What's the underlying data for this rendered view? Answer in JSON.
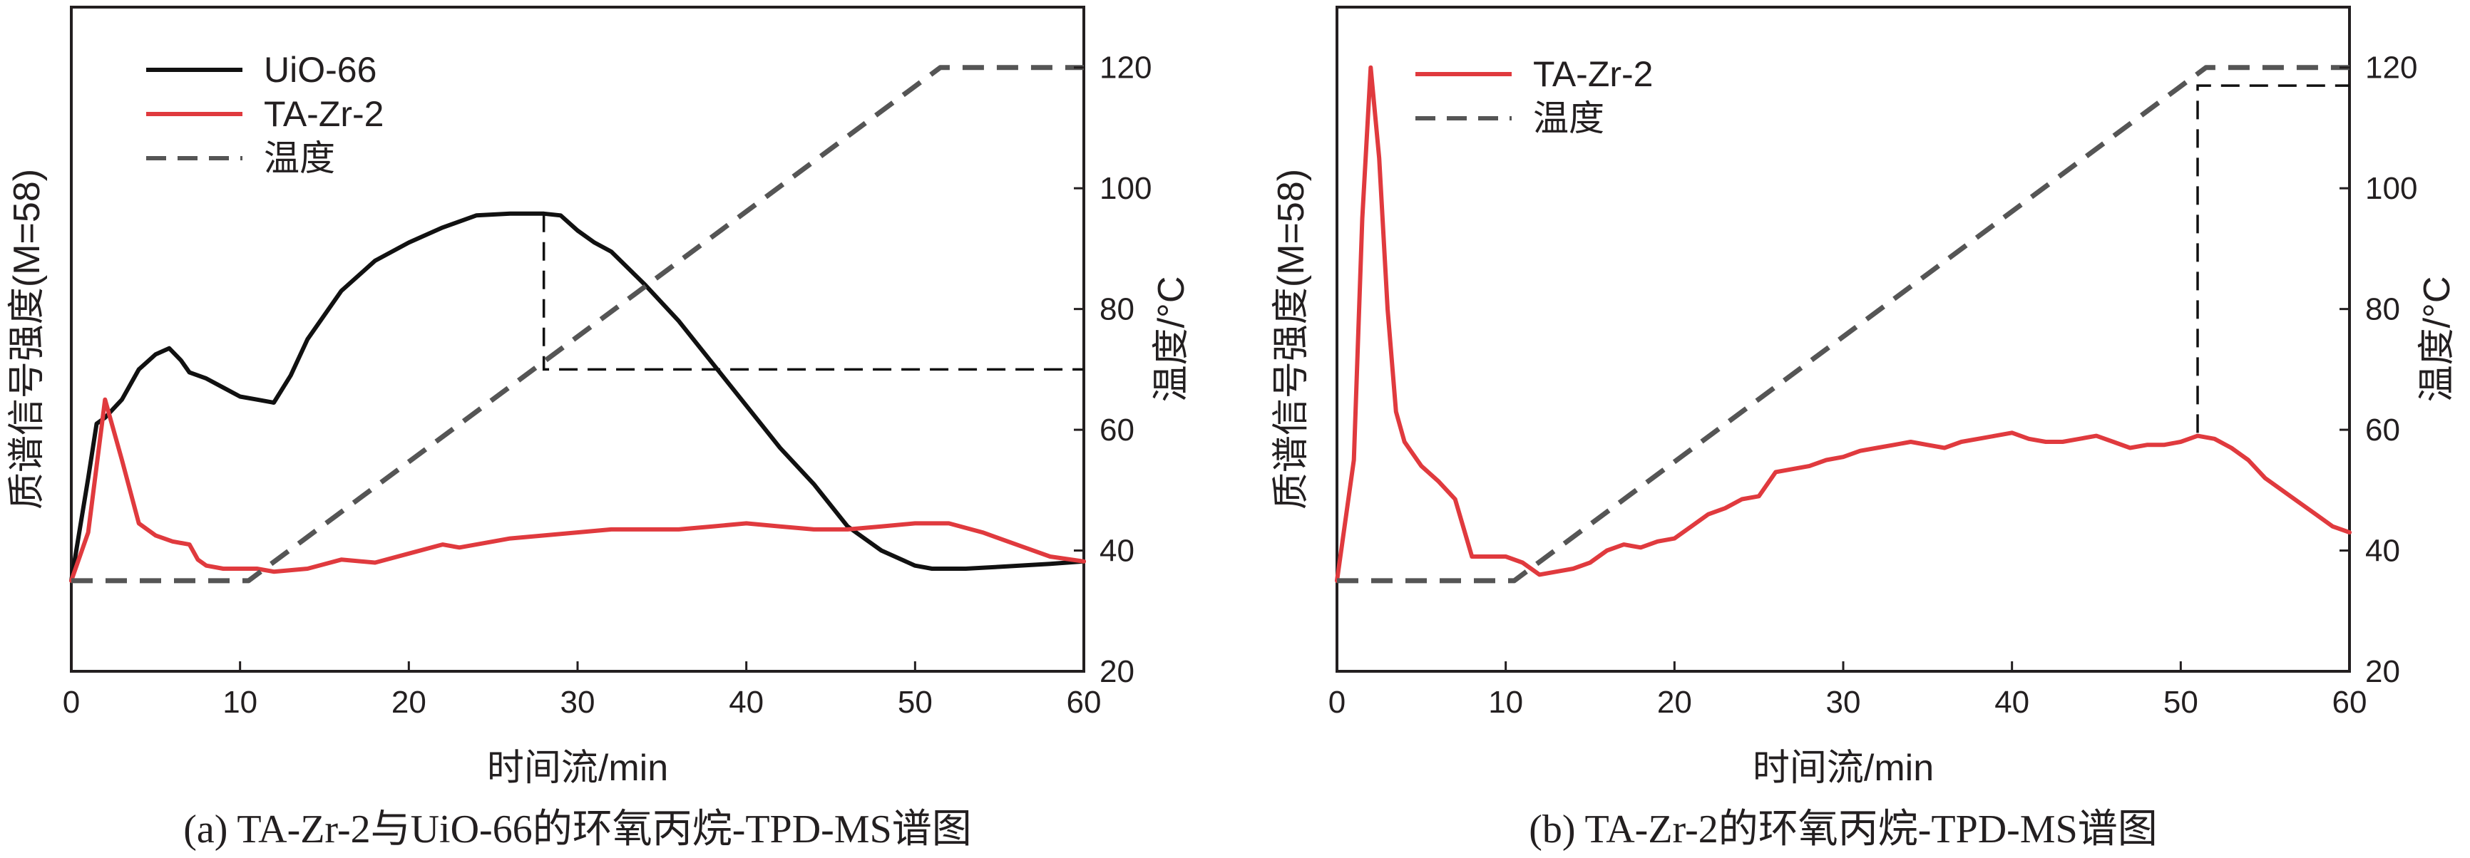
{
  "chart_data": [
    {
      "type": "line",
      "caption": "(a) TA-Zr-2与UiO-66的环氧丙烷-TPD-MS谱图",
      "xlabel": "时间流/min",
      "ylabel_left": "质谱信号强度(M=58)",
      "ylabel_right": "温度/°C",
      "xlim": [
        0,
        60
      ],
      "xticks": [
        "0",
        "10",
        "20",
        "30",
        "40",
        "50",
        "60"
      ],
      "y2lim": [
        20,
        130
      ],
      "y2ticks": [
        "20",
        "40",
        "60",
        "80",
        "100",
        "120"
      ],
      "legend_position": "top-left",
      "series": [
        {
          "name": "UiO-66",
          "color": "#111111",
          "style": "solid",
          "axis": "left",
          "x": [
            0,
            1,
            1.5,
            2,
            3,
            4,
            5,
            5.8,
            6.5,
            7,
            8,
            9,
            10,
            11,
            12,
            13,
            14,
            16,
            18,
            20,
            22,
            24,
            26,
            28,
            29,
            30,
            31,
            32,
            34,
            36,
            38,
            40,
            42,
            44,
            46,
            48,
            50,
            51,
            53,
            55,
            58,
            60
          ],
          "y": [
            35,
            52,
            61,
            62,
            65,
            70,
            72.5,
            73.5,
            71.5,
            69.5,
            68.5,
            67,
            65.5,
            65,
            64.5,
            69,
            75,
            83,
            88,
            91,
            93.5,
            95.5,
            95.8,
            95.8,
            95.5,
            93,
            91,
            89.5,
            84,
            78,
            71,
            64,
            57,
            51,
            44,
            40,
            37.5,
            37,
            37,
            37.3,
            37.8,
            38.2
          ]
        },
        {
          "name": "TA-Zr-2",
          "color": "#e03a3e",
          "style": "solid",
          "axis": "left",
          "x": [
            0,
            1,
            2,
            3,
            4,
            5,
            6,
            7,
            7.5,
            8,
            9,
            10,
            11,
            12,
            14,
            16,
            18,
            20,
            22,
            23,
            24,
            26,
            28,
            30,
            32,
            34,
            36,
            38,
            40,
            42,
            44,
            46,
            48,
            50,
            52,
            54,
            56,
            58,
            60
          ],
          "y": [
            35,
            43,
            65,
            55,
            44.5,
            42.5,
            41.5,
            41,
            38.5,
            37.5,
            37,
            37,
            37,
            36.5,
            37,
            38.5,
            38,
            39.5,
            41,
            40.5,
            41,
            42,
            42.5,
            43,
            43.5,
            43.5,
            43.5,
            44,
            44.5,
            44,
            43.5,
            43.5,
            44,
            44.5,
            44.5,
            43,
            41,
            39,
            38.2
          ]
        },
        {
          "name": "温度",
          "color": "#555555",
          "style": "dashed",
          "axis": "right",
          "x": [
            0,
            10.5,
            51.5,
            60
          ],
          "y": [
            35,
            35,
            120,
            120
          ]
        }
      ],
      "annotations": [
        {
          "type": "dashed-guide",
          "x": 28,
          "y_from": 95.8,
          "y_to": 70,
          "x_end": 60,
          "color": "#111111"
        }
      ]
    },
    {
      "type": "line",
      "caption": "(b) TA-Zr-2的环氧丙烷-TPD-MS谱图",
      "xlabel": "时间流/min",
      "ylabel_left": "质谱信号强度(M=58)",
      "ylabel_right": "温度/°C",
      "xlim": [
        0,
        60
      ],
      "xticks": [
        "0",
        "10",
        "20",
        "30",
        "40",
        "50",
        "60"
      ],
      "y2lim": [
        20,
        130
      ],
      "y2ticks": [
        "20",
        "40",
        "60",
        "80",
        "100",
        "120"
      ],
      "legend_position": "top-left",
      "series": [
        {
          "name": "TA-Zr-2",
          "color": "#e03a3e",
          "style": "solid",
          "axis": "left",
          "x": [
            0,
            1,
            1.5,
            2,
            2.5,
            3,
            3.5,
            4,
            5,
            6,
            7,
            8,
            9,
            10,
            11,
            12,
            13,
            14,
            15,
            16,
            17,
            18,
            19,
            20,
            21,
            22,
            23,
            24,
            25,
            26,
            27,
            28,
            29,
            30,
            31,
            32,
            33,
            34,
            35,
            36,
            37,
            38,
            39,
            40,
            41,
            42,
            43,
            44,
            45,
            46,
            47,
            48,
            49,
            50,
            51,
            52,
            53,
            54,
            55,
            56,
            57,
            58,
            59,
            60
          ],
          "y": [
            35,
            55,
            95,
            120,
            105,
            80,
            63,
            58,
            54,
            51.5,
            48.5,
            39,
            39,
            39,
            38,
            36,
            36.5,
            37,
            38,
            40,
            41,
            40.5,
            41.5,
            42,
            44,
            46,
            47,
            48.5,
            49,
            53,
            53.5,
            54,
            55,
            55.5,
            56.5,
            57,
            57.5,
            58,
            57.5,
            57,
            58,
            58.5,
            59,
            59.5,
            58.5,
            58,
            58,
            58.5,
            59,
            58,
            57,
            57.5,
            57.5,
            58,
            59,
            58.5,
            57,
            55,
            52,
            50,
            48,
            46,
            44,
            43
          ]
        },
        {
          "name": "温度",
          "color": "#555555",
          "style": "dashed",
          "axis": "right",
          "x": [
            0,
            10.5,
            51.5,
            60
          ],
          "y": [
            35,
            35,
            120,
            120
          ]
        }
      ],
      "annotations": [
        {
          "type": "dashed-guide",
          "x": 51,
          "y_from": 59.5,
          "y_to": 117,
          "x_end": 60,
          "color": "#111111"
        }
      ]
    }
  ]
}
